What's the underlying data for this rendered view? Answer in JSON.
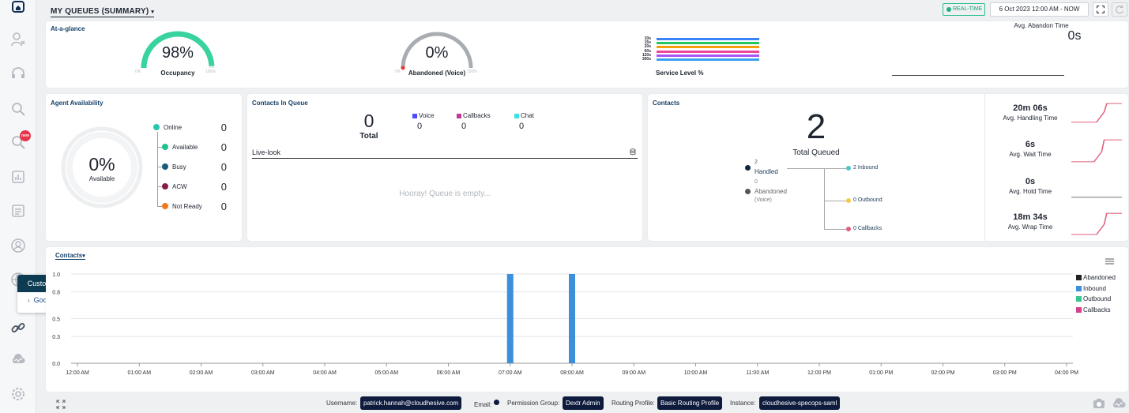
{
  "header": {
    "title": "MY QUEUES (SUMMARY)",
    "realtime_label": "REAL-TIME",
    "date_range": "6 Oct 2023 12:00 AM - NOW"
  },
  "sidebar": {
    "new_badge": "new",
    "icons": [
      "home-icon",
      "agents-icon",
      "headset-icon",
      "search-icon",
      "search-new-icon",
      "report-icon",
      "document-icon",
      "profile-icon",
      "globe-icon",
      "custom-links-icon",
      "cloud-icon",
      "settings-icon"
    ]
  },
  "custom_links": {
    "title": "Custom links",
    "items": [
      "Google"
    ]
  },
  "at_a_glance": {
    "title": "At-a-glance",
    "occupancy": {
      "value": "98%",
      "label": "Occupancy",
      "min": "0%",
      "max": "100%",
      "fraction": 0.98
    },
    "abandoned": {
      "value": "0%",
      "label": "Abandoned (Voice)",
      "min": "0%",
      "max": "100%",
      "fraction": 0.0
    },
    "service_level": {
      "label": "Service Level %",
      "rows": [
        {
          "label": "10s",
          "color": "#3b82f6"
        },
        {
          "label": "15s",
          "color": "#22c55e"
        },
        {
          "label": "20s",
          "color": "#f59e0b"
        },
        {
          "label": "60s",
          "color": "#ec4899"
        },
        {
          "label": "120s",
          "color": "#a855f7"
        },
        {
          "label": "300s",
          "color": "#3aa0f0"
        }
      ]
    },
    "avg_abandon": {
      "label": "Avg. Abandon Time",
      "value": "0s"
    }
  },
  "agent_availability": {
    "title": "Agent Availability",
    "center_value": "0%",
    "center_label": "Available",
    "items": [
      {
        "label": "Online",
        "value": "0",
        "color": "#2bc4b0"
      },
      {
        "label": "Available",
        "value": "0",
        "color": "#20c08f"
      },
      {
        "label": "Busy",
        "value": "0",
        "color": "#1a5a7a"
      },
      {
        "label": "ACW",
        "value": "0",
        "color": "#8b1a4a"
      },
      {
        "label": "Not Ready",
        "value": "0",
        "color": "#f07a1a"
      }
    ]
  },
  "contacts_in_queue": {
    "title": "Contacts In Queue",
    "total_value": "0",
    "total_label": "Total",
    "channels": [
      {
        "label": "Voice",
        "value": "0",
        "color": "#4b4bff"
      },
      {
        "label": "Callbacks",
        "value": "0",
        "color": "#c0399a"
      },
      {
        "label": "Chat",
        "value": "0",
        "color": "#3ee0e0"
      }
    ],
    "live_look_label": "Live-look",
    "empty_message": "Hooray! Queue is empty..."
  },
  "contacts": {
    "title": "Contacts",
    "total_value": "2",
    "total_label": "Total Queued",
    "handled": {
      "value": "2",
      "label": "Handled"
    },
    "abandoned": {
      "value": "0",
      "label": "Abandoned",
      "sub": "(Voice)"
    },
    "branches": [
      {
        "label": "2 Inbound",
        "color": "#4fc3c8"
      },
      {
        "label": "0 Outbound",
        "color": "#f2c94c"
      },
      {
        "label": "0 Callbacks",
        "color": "#e0607e"
      }
    ],
    "kpis": [
      {
        "value": "20m 06s",
        "label": "Avg. Handling Time"
      },
      {
        "value": "6s",
        "label": "Avg. Wait Time"
      },
      {
        "value": "0s",
        "label": "Avg. Hold Time"
      },
      {
        "value": "18m 34s",
        "label": "Avg. Wrap Time"
      }
    ]
  },
  "chart_panel": {
    "title": "Contacts"
  },
  "chart_data": {
    "type": "bar",
    "categories": [
      "12:00 AM",
      "01:00 AM",
      "02:00 AM",
      "03:00 AM",
      "04:00 AM",
      "05:00 AM",
      "06:00 AM",
      "07:00 AM",
      "08:00 AM",
      "09:00 AM",
      "10:00 AM",
      "11:00 AM",
      "12:00 PM",
      "01:00 PM",
      "02:00 PM",
      "03:00 PM",
      "04:00 PM"
    ],
    "y_ticks": [
      "0.0",
      "0.3",
      "0.5",
      "0.8",
      "1.0"
    ],
    "ylim": [
      0,
      1
    ],
    "series": [
      {
        "name": "Abandoned",
        "color": "#222222",
        "values": [
          0,
          0,
          0,
          0,
          0,
          0,
          0,
          0,
          0,
          0,
          0,
          0,
          0,
          0,
          0,
          0,
          0
        ]
      },
      {
        "name": "Inbound",
        "color": "#3b8fdb",
        "values": [
          0,
          0,
          0,
          0,
          0,
          0,
          0,
          1,
          1,
          0,
          0,
          0,
          0,
          0,
          0,
          0,
          0
        ]
      },
      {
        "name": "Outbound",
        "color": "#3ac48f",
        "values": [
          0,
          0,
          0,
          0,
          0,
          0,
          0,
          0,
          0,
          0,
          0,
          0,
          0,
          0,
          0,
          0,
          0
        ]
      },
      {
        "name": "Callbacks",
        "color": "#d63f8c",
        "values": [
          0,
          0,
          0,
          0,
          0,
          0,
          0,
          0,
          0,
          0,
          0,
          0,
          0,
          0,
          0,
          0,
          0
        ]
      }
    ],
    "legend_position": "right"
  },
  "footer": {
    "username_label": "Username:",
    "username": "patrick.hannah@cloudhesive.com",
    "email_label": "Email:",
    "permission_label": "Permission Group:",
    "permission": "Dextr Admin",
    "routing_label": "Routing Profile:",
    "routing": "Basic Routing Profile",
    "instance_label": "Instance:",
    "instance": "cloudhesive-specops-saml"
  }
}
